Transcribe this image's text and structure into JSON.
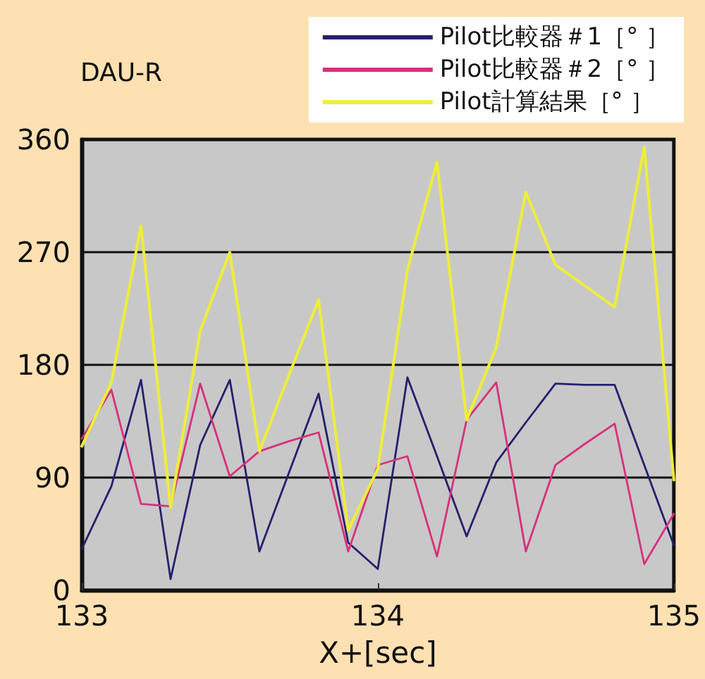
{
  "chart_data": {
    "type": "line",
    "title": "DAU-R",
    "xlabel": "X+[sec]",
    "x": [
      133.0,
      133.1,
      133.2,
      133.3,
      133.4,
      133.5,
      133.6,
      133.7,
      133.8,
      133.9,
      134.0,
      134.1,
      134.2,
      134.3,
      134.4,
      134.5,
      134.6,
      134.7,
      134.8,
      134.9,
      135.0
    ],
    "series": [
      {
        "name": "Pilot比較器＃1［° ］",
        "color": "#24206e",
        "values": [
          33,
          83,
          168,
          9,
          116,
          168,
          31,
          94,
          157,
          38,
          17,
          170,
          107,
          43,
          102,
          134,
          165,
          164,
          164,
          100,
          36
        ]
      },
      {
        "name": "Pilot比較器＃2［° ］",
        "color": "#d8307c",
        "values": [
          121,
          160,
          69,
          67,
          165,
          91,
          111,
          119,
          126,
          31,
          100,
          107,
          27,
          136,
          166,
          31,
          100,
          117,
          133,
          21,
          61
        ]
      },
      {
        "name": "Pilot計算結果［° ］",
        "color": "#eeee3a",
        "values": [
          115,
          166,
          291,
          66,
          207,
          270,
          111,
          172,
          232,
          48,
          97,
          256,
          342,
          136,
          194,
          318,
          260,
          243,
          226,
          354,
          88
        ]
      }
    ],
    "xlim": [
      133,
      135
    ],
    "xticks": [
      133,
      134,
      135
    ],
    "ylim": [
      0,
      360
    ],
    "yticks": [
      0,
      90,
      180,
      270,
      360
    ],
    "grid": "y",
    "legend": "top right",
    "line_style": "solid"
  }
}
